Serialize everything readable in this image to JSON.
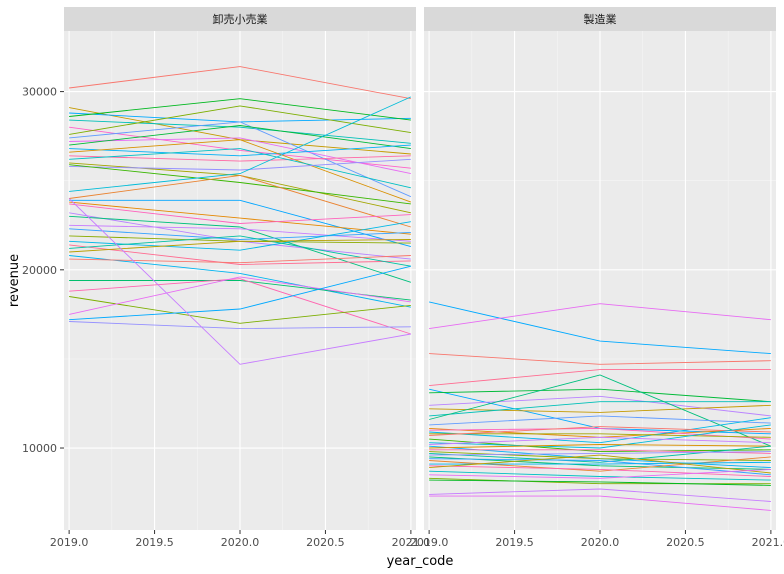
{
  "chart_data": {
    "type": "line",
    "xlabel": "year_code",
    "ylabel": "revenue",
    "x": [
      2019,
      2020,
      2021
    ],
    "xlim": [
      2018.97,
      2021.03
    ],
    "ylim": [
      5400,
      33400
    ],
    "x_ticks": [
      2019.0,
      2019.5,
      2020.0,
      2020.5,
      2021.0
    ],
    "x_tick_labels": [
      "2019.0",
      "2019.5",
      "2020.0",
      "2020.5",
      "2021.0"
    ],
    "y_ticks": [
      10000,
      20000,
      30000
    ],
    "y_tick_labels": [
      "10000",
      "20000",
      "30000"
    ],
    "grid": true,
    "legend": "none",
    "facets": [
      {
        "label": "卸売小売業",
        "series": [
          {
            "values": [
              30200,
              31400,
              29600
            ],
            "color": "#F8766D"
          },
          {
            "values": [
              29100,
              27300,
              26500
            ],
            "color": "#C49A00"
          },
          {
            "values": [
              28800,
              28300,
              28500
            ],
            "color": "#00A9FF"
          },
          {
            "values": [
              28600,
              29600,
              28400
            ],
            "color": "#00B81F"
          },
          {
            "values": [
              28400,
              28000,
              27100
            ],
            "color": "#00C0B8"
          },
          {
            "values": [
              28000,
              26700,
              25700
            ],
            "color": "#FF61C9"
          },
          {
            "values": [
              27600,
              29200,
              27700
            ],
            "color": "#7CAE00"
          },
          {
            "values": [
              27400,
              28300,
              24100
            ],
            "color": "#619CFF"
          },
          {
            "values": [
              27200,
              27400,
              25400
            ],
            "color": "#E76BF3"
          },
          {
            "values": [
              27000,
              28100,
              26800
            ],
            "color": "#00BA38"
          },
          {
            "values": [
              26800,
              26400,
              27000
            ],
            "color": "#00B0F6"
          },
          {
            "values": [
              26600,
              27300,
              23800
            ],
            "color": "#D89000"
          },
          {
            "values": [
              26400,
              26100,
              26400
            ],
            "color": "#FF67A4"
          },
          {
            "values": [
              26200,
              26800,
              24600
            ],
            "color": "#00BFC4"
          },
          {
            "values": [
              26000,
              25300,
              23200
            ],
            "color": "#A3A500"
          },
          {
            "values": [
              25800,
              25600,
              26200
            ],
            "color": "#9590FF"
          },
          {
            "values": [
              25900,
              24900,
              23700
            ],
            "color": "#39B600"
          },
          {
            "values": [
              24400,
              25400,
              29700
            ],
            "color": "#00BCD8"
          },
          {
            "values": [
              24000,
              25300,
              22400
            ],
            "color": "#EA8331"
          },
          {
            "values": [
              23900,
              23900,
              21300
            ],
            "color": "#00A5FF"
          },
          {
            "values": [
              23800,
              22900,
              22000
            ],
            "color": "#E58700"
          },
          {
            "values": [
              23700,
              22600,
              23100
            ],
            "color": "#FF62BC"
          },
          {
            "values": [
              23200,
              21600,
              20600
            ],
            "color": "#B983FF"
          },
          {
            "values": [
              23000,
              22400,
              19300
            ],
            "color": "#00BF7D"
          },
          {
            "values": [
              22500,
              22300,
              21600
            ],
            "color": "#C77CFF"
          },
          {
            "values": [
              22300,
              21700,
              22100
            ],
            "color": "#35A2FF"
          },
          {
            "values": [
              21900,
              21600,
              21500
            ],
            "color": "#8AAB00"
          },
          {
            "values": [
              21600,
              21100,
              22700
            ],
            "color": "#00B8E7"
          },
          {
            "values": [
              21400,
              20300,
              20500
            ],
            "color": "#FF6C91"
          },
          {
            "values": [
              21200,
              21900,
              20200
            ],
            "color": "#00C1A3"
          },
          {
            "values": [
              21000,
              21600,
              21700
            ],
            "color": "#B79F00"
          },
          {
            "values": [
              20800,
              19800,
              17900
            ],
            "color": "#00B4F0"
          },
          {
            "values": [
              20600,
              20400,
              20800
            ],
            "color": "#F8766D"
          },
          {
            "values": [
              19400,
              19400,
              18300
            ],
            "color": "#00BE6C"
          },
          {
            "values": [
              18800,
              19500,
              16400
            ],
            "color": "#FF64B0"
          },
          {
            "values": [
              18500,
              17000,
              18000
            ],
            "color": "#7CAE00"
          },
          {
            "values": [
              17500,
              19600,
              18200
            ],
            "color": "#E76BF3"
          },
          {
            "values": [
              17200,
              17800,
              20200
            ],
            "color": "#00A9FF"
          },
          {
            "values": [
              17100,
              16700,
              16800
            ],
            "color": "#9590FF"
          },
          {
            "values": [
              24000,
              14700,
              16400
            ],
            "color": "#C77CFF"
          }
        ]
      },
      {
        "label": "製造業",
        "series": [
          {
            "values": [
              18200,
              16000,
              15300
            ],
            "color": "#00A9FF"
          },
          {
            "values": [
              16700,
              18100,
              17200
            ],
            "color": "#E76BF3"
          },
          {
            "values": [
              15300,
              14700,
              14900
            ],
            "color": "#F8766D"
          },
          {
            "values": [
              13500,
              14400,
              14400
            ],
            "color": "#FF6C91"
          },
          {
            "values": [
              13300,
              11100,
              10800
            ],
            "color": "#00A9FF"
          },
          {
            "values": [
              13100,
              13300,
              12600
            ],
            "color": "#00BA38"
          },
          {
            "values": [
              12400,
              12900,
              11800
            ],
            "color": "#B983FF"
          },
          {
            "values": [
              12200,
              12000,
              12400
            ],
            "color": "#C49A00"
          },
          {
            "values": [
              11800,
              12600,
              12600
            ],
            "color": "#00C0B8"
          },
          {
            "values": [
              11600,
              14100,
              10100
            ],
            "color": "#00BF7D"
          },
          {
            "values": [
              11300,
              11800,
              11400
            ],
            "color": "#619CFF"
          },
          {
            "values": [
              11100,
              10600,
              11100
            ],
            "color": "#E58700"
          },
          {
            "values": [
              11000,
              11100,
              10500
            ],
            "color": "#FF62BC"
          },
          {
            "values": [
              10900,
              10300,
              11700
            ],
            "color": "#00B8E7"
          },
          {
            "values": [
              10800,
              10800,
              10600
            ],
            "color": "#A3A500"
          },
          {
            "values": [
              10700,
              11200,
              10900
            ],
            "color": "#F8766D"
          },
          {
            "values": [
              10500,
              9800,
              9900
            ],
            "color": "#39B600"
          },
          {
            "values": [
              10300,
              10000,
              11300
            ],
            "color": "#00BCD8"
          },
          {
            "values": [
              10200,
              10600,
              10300
            ],
            "color": "#C77CFF"
          },
          {
            "values": [
              10100,
              9400,
              8900
            ],
            "color": "#00B0F6"
          },
          {
            "values": [
              10000,
              10200,
              10100
            ],
            "color": "#D89000"
          },
          {
            "values": [
              9900,
              9900,
              9700
            ],
            "color": "#FF67A4"
          },
          {
            "values": [
              9800,
              9400,
              9300
            ],
            "color": "#8AAB00"
          },
          {
            "values": [
              9700,
              9200,
              10100
            ],
            "color": "#00C1A3"
          },
          {
            "values": [
              9600,
              9700,
              9800
            ],
            "color": "#9590FF"
          },
          {
            "values": [
              9500,
              9000,
              8800
            ],
            "color": "#00BE6C"
          },
          {
            "values": [
              9400,
              9300,
              8500
            ],
            "color": "#35A2FF"
          },
          {
            "values": [
              9300,
              8700,
              9500
            ],
            "color": "#EA8331"
          },
          {
            "values": [
              9100,
              9100,
              9200
            ],
            "color": "#00B4F0"
          },
          {
            "values": [
              9000,
              8800,
              8400
            ],
            "color": "#FF64B0"
          },
          {
            "values": [
              8900,
              9600,
              8600
            ],
            "color": "#B79F00"
          },
          {
            "values": [
              8700,
              8400,
              8200
            ],
            "color": "#00BFC4"
          },
          {
            "values": [
              8500,
              8300,
              8800
            ],
            "color": "#E76BF3"
          },
          {
            "values": [
              8300,
              8000,
              8000
            ],
            "color": "#7CAE00"
          },
          {
            "values": [
              8200,
              8100,
              7900
            ],
            "color": "#00B81F"
          },
          {
            "values": [
              7400,
              7700,
              7000
            ],
            "color": "#C77CFF"
          },
          {
            "values": [
              7300,
              7300,
              6500
            ],
            "color": "#E76BF3"
          }
        ]
      }
    ]
  }
}
